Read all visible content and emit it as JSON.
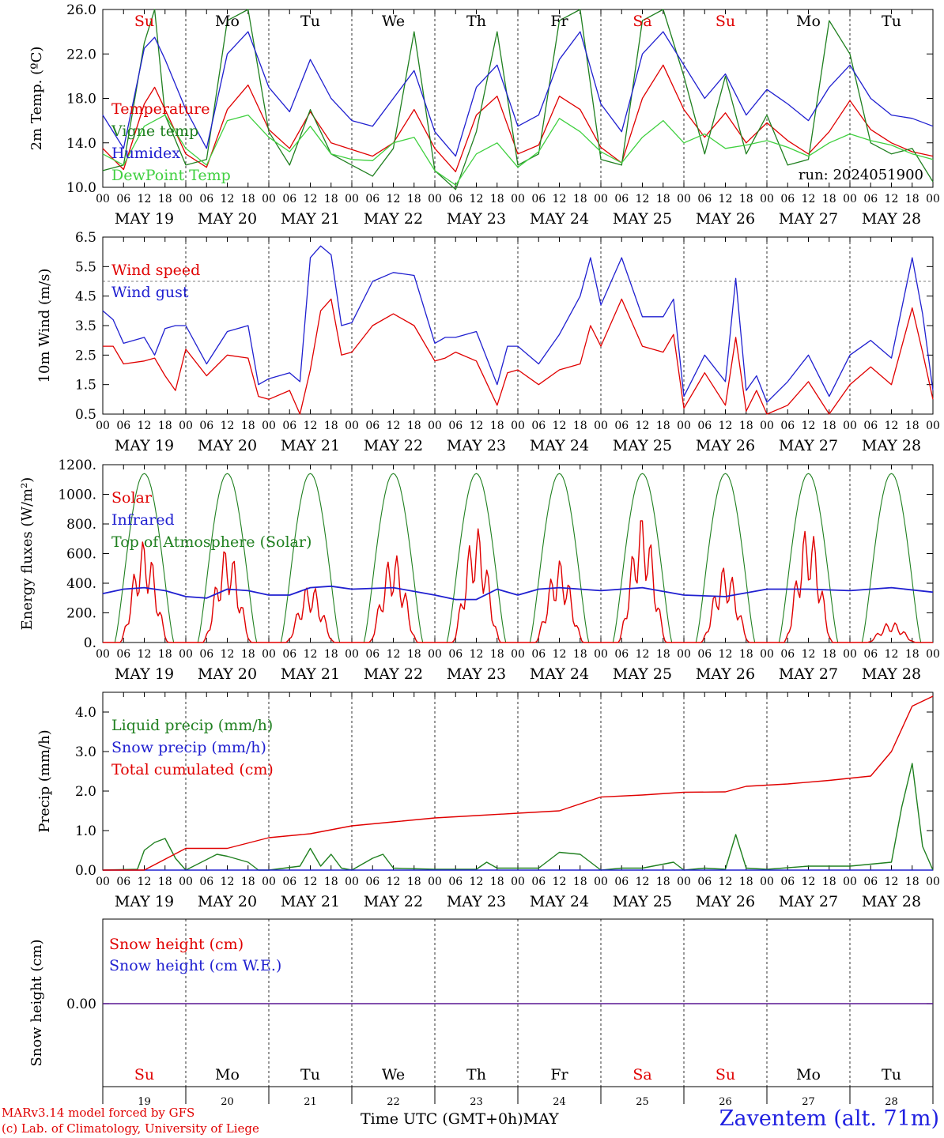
{
  "chart_data": [
    {
      "type": "line",
      "ylabel": "2m Temp. (ºC)",
      "ylim": [
        10,
        26
      ],
      "yticks": [
        "10.0",
        "14.0",
        "18.0",
        "22.0",
        "26.0"
      ],
      "annotation": "run: 2024051900",
      "weekdays": [
        "Su",
        "Mo",
        "Tu",
        "We",
        "Th",
        "Fr",
        "Sa",
        "Su",
        "Mo",
        "Tu"
      ],
      "weekday_colors": [
        "#e00000",
        "#000000",
        "#000000",
        "#000000",
        "#000000",
        "#000000",
        "#e00000",
        "#e00000",
        "#000000",
        "#000000"
      ],
      "series": [
        {
          "name": "Temperature",
          "color": "#e00000",
          "x_hours": [
            0,
            6,
            12,
            15,
            18,
            24,
            30,
            36,
            42,
            48,
            54,
            60,
            66,
            72,
            78,
            84,
            90,
            96,
            102,
            108,
            114,
            120,
            126,
            132,
            138,
            144,
            150,
            156,
            162,
            168,
            174,
            180,
            186,
            192,
            198,
            204,
            210,
            216,
            222,
            228,
            234,
            240
          ],
          "values": [
            13.5,
            11.6,
            17.5,
            19.0,
            17.0,
            13.0,
            11.8,
            17.0,
            19.2,
            15.2,
            13.5,
            16.8,
            14.0,
            13.4,
            12.8,
            14.0,
            17.0,
            13.5,
            11.4,
            16.5,
            18.2,
            13.0,
            13.8,
            18.2,
            17.0,
            13.6,
            12.2,
            18.0,
            21.0,
            17.0,
            14.5,
            16.7,
            14.0,
            15.8,
            14.2,
            13.0,
            15.0,
            17.8,
            15.2,
            14.0,
            13.2,
            12.8
          ]
        },
        {
          "name": "Vigne temp",
          "color": "#208020",
          "x_hours": [
            0,
            6,
            12,
            15,
            18,
            24,
            30,
            36,
            42,
            48,
            54,
            60,
            66,
            72,
            78,
            84,
            90,
            96,
            102,
            108,
            114,
            120,
            126,
            132,
            138,
            144,
            150,
            156,
            162,
            168,
            174,
            180,
            186,
            192,
            198,
            204,
            210,
            216,
            222,
            228,
            234,
            240
          ],
          "values": [
            11.5,
            12.0,
            23.0,
            26.0,
            16.5,
            12.0,
            12.5,
            25.0,
            26.0,
            15.0,
            12.0,
            17.0,
            13.0,
            12.0,
            11.0,
            13.5,
            24.0,
            11.5,
            9.8,
            15.0,
            24.0,
            12.0,
            13.0,
            25.0,
            26.0,
            12.5,
            12.0,
            25.0,
            26.0,
            20.0,
            13.0,
            20.0,
            13.0,
            16.5,
            12.0,
            12.5,
            25.0,
            22.0,
            14.0,
            13.0,
            13.5,
            10.5
          ]
        },
        {
          "name": "Humidex",
          "color": "#2020d0",
          "x_hours": [
            0,
            6,
            12,
            15,
            18,
            24,
            30,
            36,
            42,
            48,
            54,
            60,
            66,
            72,
            78,
            84,
            90,
            96,
            102,
            108,
            114,
            120,
            126,
            132,
            138,
            144,
            150,
            156,
            162,
            168,
            174,
            180,
            186,
            192,
            198,
            204,
            210,
            216,
            222,
            228,
            234,
            240
          ],
          "values": [
            16.5,
            13.5,
            22.5,
            23.5,
            21.5,
            17.0,
            13.5,
            22.0,
            24.0,
            19.0,
            16.8,
            21.5,
            18.0,
            16.0,
            15.5,
            18.0,
            20.5,
            15.0,
            12.8,
            19.0,
            21.0,
            15.5,
            16.5,
            21.5,
            24.0,
            17.5,
            15.0,
            22.0,
            24.0,
            21.0,
            18.0,
            20.2,
            16.5,
            18.8,
            17.5,
            16.0,
            19.0,
            21.0,
            18.0,
            16.5,
            16.2,
            15.5
          ]
        },
        {
          "name": "DewPoint Temp",
          "color": "#40d040",
          "x_hours": [
            0,
            6,
            12,
            18,
            24,
            30,
            36,
            42,
            48,
            54,
            60,
            66,
            72,
            78,
            84,
            90,
            96,
            102,
            108,
            114,
            120,
            126,
            132,
            138,
            144,
            150,
            156,
            162,
            168,
            174,
            180,
            186,
            192,
            198,
            204,
            210,
            216,
            222,
            228,
            234,
            240
          ],
          "values": [
            13.0,
            12.0,
            15.5,
            16.5,
            13.5,
            12.0,
            16.0,
            16.5,
            14.5,
            13.2,
            15.5,
            13.0,
            12.5,
            12.4,
            14.0,
            14.5,
            11.5,
            10.2,
            13.0,
            14.0,
            11.8,
            13.2,
            16.2,
            15.0,
            13.2,
            12.2,
            14.5,
            16.0,
            14.0,
            14.8,
            13.5,
            13.8,
            14.2,
            13.6,
            12.8,
            14.0,
            14.8,
            14.2,
            13.8,
            13.0,
            12.5
          ]
        }
      ]
    },
    {
      "type": "line",
      "ylabel": "10m Wind (m/s)",
      "ylim": [
        0.5,
        6.5
      ],
      "yticks": [
        "0.5",
        "1.5",
        "2.5",
        "3.5",
        "4.5",
        "5.5",
        "6.5"
      ],
      "reference_line": 5.0,
      "series": [
        {
          "name": "Wind speed",
          "color": "#e00000",
          "x_hours": [
            0,
            3,
            6,
            12,
            15,
            18,
            21,
            24,
            30,
            36,
            42,
            45,
            48,
            54,
            57,
            60,
            63,
            66,
            69,
            72,
            78,
            84,
            90,
            96,
            99,
            102,
            108,
            114,
            117,
            120,
            126,
            132,
            138,
            141,
            144,
            150,
            156,
            162,
            165,
            168,
            174,
            180,
            183,
            186,
            189,
            192,
            198,
            204,
            210,
            216,
            222,
            228,
            234,
            237,
            240
          ],
          "values": [
            2.8,
            2.8,
            2.2,
            2.3,
            2.4,
            1.8,
            1.3,
            2.7,
            1.8,
            2.5,
            2.4,
            1.1,
            1.0,
            1.3,
            0.5,
            2.0,
            4.0,
            4.4,
            2.5,
            2.6,
            3.5,
            3.9,
            3.5,
            2.3,
            2.4,
            2.6,
            2.3,
            0.8,
            1.9,
            2.0,
            1.5,
            2.0,
            2.2,
            3.5,
            2.8,
            4.4,
            2.8,
            2.6,
            3.2,
            0.7,
            1.9,
            0.8,
            3.1,
            0.6,
            1.3,
            0.5,
            0.8,
            1.6,
            0.5,
            1.5,
            2.1,
            1.5,
            4.1,
            2.6,
            1.0
          ]
        },
        {
          "name": "Wind gust",
          "color": "#2020d0",
          "x_hours": [
            0,
            3,
            6,
            12,
            15,
            18,
            21,
            24,
            30,
            36,
            42,
            45,
            48,
            54,
            57,
            60,
            63,
            66,
            69,
            72,
            78,
            84,
            90,
            96,
            99,
            102,
            108,
            114,
            117,
            120,
            126,
            132,
            138,
            141,
            144,
            150,
            156,
            162,
            165,
            168,
            174,
            180,
            183,
            186,
            189,
            192,
            198,
            204,
            210,
            216,
            222,
            228,
            234,
            237,
            240
          ],
          "values": [
            4.0,
            3.7,
            2.9,
            3.1,
            2.5,
            3.4,
            3.5,
            3.5,
            2.2,
            3.3,
            3.5,
            1.5,
            1.7,
            1.9,
            1.6,
            5.8,
            6.2,
            5.9,
            3.5,
            3.6,
            5.0,
            5.3,
            5.2,
            2.9,
            3.1,
            3.1,
            3.3,
            1.5,
            2.8,
            2.8,
            2.2,
            3.2,
            4.5,
            5.8,
            4.2,
            5.8,
            3.8,
            3.8,
            4.4,
            1.1,
            2.5,
            1.6,
            5.1,
            1.3,
            1.8,
            0.9,
            1.6,
            2.5,
            1.1,
            2.5,
            3.0,
            2.4,
            5.8,
            3.9,
            1.3
          ]
        }
      ]
    },
    {
      "type": "line",
      "ylabel": "Energy fluxes (W/m²)",
      "ylim": [
        0,
        1200
      ],
      "yticks": [
        "0.",
        "200.",
        "400.",
        "600.",
        "800.",
        "1000.",
        "1200."
      ],
      "series": [
        {
          "name": "Solar",
          "color": "#e00000",
          "day_peaks": [
            690,
            650,
            400,
            610,
            780,
            560,
            860,
            520,
            790,
            140
          ]
        },
        {
          "name": "Infrared",
          "color": "#2020d0",
          "x_hours": [
            0,
            6,
            12,
            18,
            24,
            30,
            36,
            42,
            48,
            54,
            60,
            66,
            72,
            84,
            96,
            102,
            108,
            114,
            120,
            126,
            132,
            144,
            150,
            156,
            168,
            180,
            192,
            204,
            216,
            228,
            240
          ],
          "values": [
            330,
            360,
            370,
            350,
            310,
            300,
            360,
            350,
            320,
            320,
            370,
            380,
            360,
            370,
            320,
            290,
            290,
            360,
            320,
            360,
            370,
            350,
            360,
            370,
            320,
            310,
            360,
            360,
            350,
            370,
            340
          ]
        },
        {
          "name": "Top of Atmosphere (Solar)",
          "color": "#208020",
          "day_peaks": [
            1140,
            1140,
            1140,
            1140,
            1140,
            1140,
            1140,
            1140,
            1140,
            1140
          ]
        }
      ]
    },
    {
      "type": "line",
      "ylabel": "Precip (mm/h)",
      "ylim": [
        0,
        4.5
      ],
      "yticks": [
        "0.0",
        "1.0",
        "2.0",
        "3.0",
        "4.0"
      ],
      "series": [
        {
          "name": "Liquid precip (mm/h)",
          "color": "#208020",
          "x_hours": [
            0,
            10,
            12,
            15,
            18,
            21,
            24,
            33,
            36,
            42,
            45,
            48,
            57,
            60,
            63,
            66,
            69,
            72,
            78,
            81,
            84,
            96,
            108,
            111,
            114,
            126,
            132,
            138,
            144,
            150,
            156,
            165,
            168,
            174,
            180,
            183,
            186,
            192,
            204,
            216,
            228,
            231,
            234,
            237,
            240
          ],
          "values": [
            0,
            0.02,
            0.5,
            0.7,
            0.8,
            0.3,
            0,
            0.4,
            0.35,
            0.2,
            0,
            0,
            0.1,
            0.55,
            0.1,
            0.4,
            0.05,
            0,
            0.3,
            0.4,
            0.05,
            0.02,
            0.02,
            0.2,
            0.05,
            0.05,
            0.45,
            0.4,
            0,
            0.05,
            0.05,
            0.2,
            0,
            0.05,
            0.02,
            0.9,
            0.05,
            0.02,
            0.1,
            0.1,
            0.2,
            1.6,
            2.7,
            0.6,
            0
          ]
        },
        {
          "name": "Snow precip (mm/h)",
          "color": "#2020d0",
          "x_hours": [
            0,
            240
          ],
          "values": [
            0,
            0
          ]
        },
        {
          "name": "Total cumulated (cm)",
          "color": "#e00000",
          "x_hours": [
            0,
            12,
            24,
            36,
            48,
            60,
            72,
            84,
            96,
            108,
            120,
            132,
            144,
            156,
            168,
            180,
            186,
            198,
            210,
            222,
            228,
            234,
            240
          ],
          "values": [
            0,
            0,
            0.55,
            0.55,
            0.82,
            0.92,
            1.12,
            1.22,
            1.32,
            1.38,
            1.44,
            1.5,
            1.85,
            1.9,
            1.97,
            1.98,
            2.12,
            2.18,
            2.27,
            2.38,
            3.0,
            4.15,
            4.4
          ]
        }
      ]
    },
    {
      "type": "line",
      "ylabel": "Snow height (cm)",
      "ytick": "0.00",
      "series": [
        {
          "name": "Snow height (cm)",
          "color": "#e00000",
          "x_hours": [
            0,
            240
          ],
          "values": [
            0,
            0
          ]
        },
        {
          "name": "Snow height (cm W.E.)",
          "color": "#2020d0",
          "x_hours": [
            0,
            240
          ],
          "values": [
            0,
            0
          ]
        }
      ],
      "weekdays": [
        "Su",
        "Mo",
        "Tu",
        "We",
        "Th",
        "Fr",
        "Sa",
        "Su",
        "Mo",
        "Tu"
      ],
      "weekday_colors": [
        "#e00000",
        "#000000",
        "#000000",
        "#000000",
        "#000000",
        "#000000",
        "#e00000",
        "#e00000",
        "#000000",
        "#000000"
      ],
      "day_numbers": [
        "19",
        "20",
        "21",
        "22",
        "23",
        "24",
        "25",
        "26",
        "27",
        "28"
      ]
    }
  ],
  "hour_ticks": [
    "00",
    "06",
    "12",
    "18"
  ],
  "date_labels": [
    "MAY 19",
    "MAY 20",
    "MAY 21",
    "MAY 22",
    "MAY 23",
    "MAY 24",
    "MAY 25",
    "MAY 26",
    "MAY 27",
    "MAY 28"
  ],
  "x_axis_title": "Time UTC (GMT+0h)",
  "month": "MAY",
  "credits": [
    "MARv3.14 model forced by GFS",
    "(c) Lab. of Climatology, University of Liege"
  ],
  "station": "Zaventem (alt. 71m)"
}
